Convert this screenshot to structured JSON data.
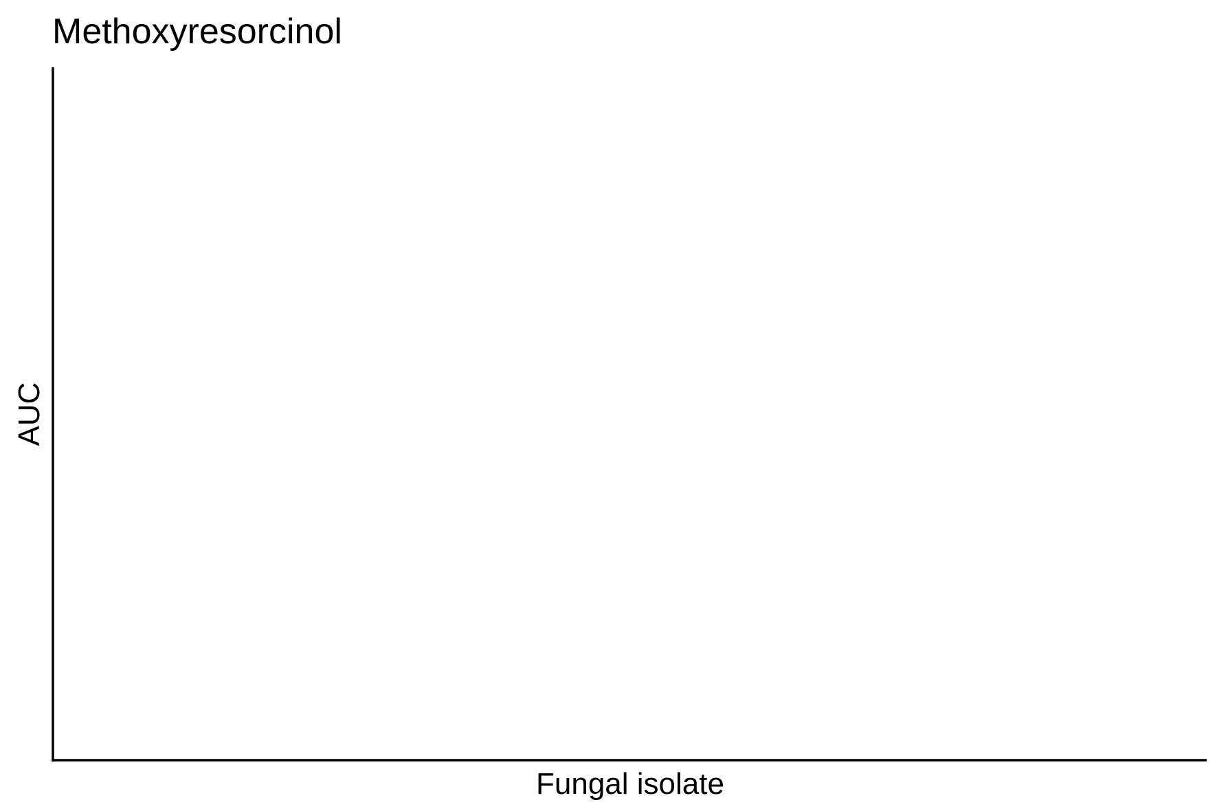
{
  "chart_data": {
    "type": "bar",
    "title": "Methoxyresorcinol",
    "xlabel": "Fungal isolate",
    "ylabel": "AUC",
    "categories": [],
    "values": [],
    "grid": false,
    "legend": "none"
  }
}
